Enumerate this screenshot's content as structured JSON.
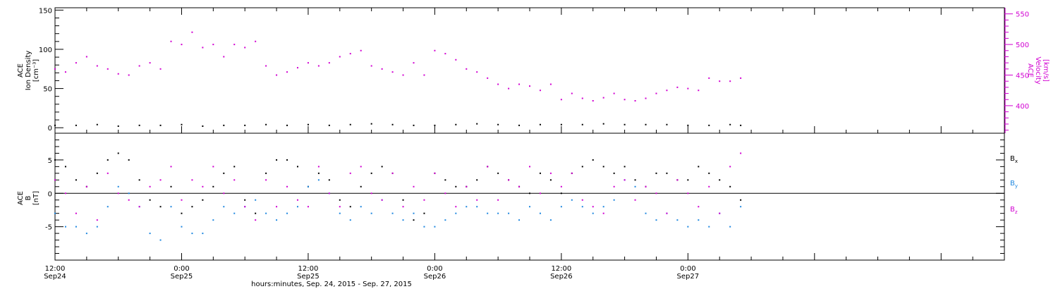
{
  "chart_data": [
    {
      "type": "scatter",
      "panel": "top",
      "ylabel_left": [
        "ACE",
        "Ion Density",
        "[cm⁻³]"
      ],
      "ylabel_right": [
        "ACE",
        "Velocity",
        "[km/s]"
      ],
      "y_left_range": [
        -7,
        153
      ],
      "y_left_ticks": [
        "0",
        "50",
        "100",
        "150"
      ],
      "y_right_range": [
        355,
        560
      ],
      "y_right_ticks": [
        "400",
        "450",
        "500",
        "550"
      ],
      "series": [
        {
          "color": "#000000",
          "axis": "left",
          "x": [
            0,
            2,
            4,
            6,
            8,
            10,
            12,
            14,
            16,
            18,
            20,
            22,
            24,
            26,
            28,
            30,
            32,
            34,
            36,
            38,
            40,
            42,
            44,
            46,
            48,
            50,
            52,
            54,
            56,
            58,
            60,
            62,
            64,
            65
          ],
          "y": [
            3,
            3,
            4,
            2,
            3,
            3,
            4,
            2,
            3,
            3,
            4,
            3,
            4,
            3,
            4,
            5,
            4,
            3,
            3,
            4,
            5,
            4,
            3,
            4,
            4,
            4,
            5,
            4,
            4,
            4,
            3,
            3,
            4,
            3
          ]
        },
        {
          "color": "#d200d2",
          "axis": "right",
          "x": [
            0,
            1,
            2,
            3,
            4,
            5,
            6,
            7,
            8,
            9,
            10,
            11,
            12,
            13,
            14,
            15,
            16,
            17,
            18,
            19,
            20,
            21,
            22,
            23,
            24,
            25,
            26,
            27,
            28,
            29,
            30,
            31,
            32,
            33,
            34,
            35,
            36,
            37,
            38,
            39,
            40,
            41,
            42,
            43,
            44,
            45,
            46,
            47,
            48,
            49,
            50,
            51,
            52,
            53,
            54,
            55,
            56,
            57,
            58,
            59,
            60,
            61,
            62,
            63,
            64,
            65
          ],
          "y": [
            460,
            455,
            470,
            480,
            465,
            460,
            452,
            450,
            465,
            470,
            460,
            505,
            500,
            520,
            495,
            500,
            480,
            500,
            495,
            505,
            465,
            450,
            455,
            462,
            470,
            465,
            470,
            480,
            485,
            490,
            465,
            460,
            455,
            450,
            470,
            450,
            490,
            485,
            475,
            460,
            455,
            445,
            435,
            428,
            435,
            432,
            425,
            435,
            410,
            420,
            412,
            408,
            413,
            420,
            410,
            408,
            412,
            420,
            425,
            430,
            428,
            425,
            445,
            440,
            440,
            445
          ]
        }
      ]
    },
    {
      "type": "scatter",
      "panel": "bottom",
      "ylabel_left": [
        "ACE",
        "B",
        "[nT]"
      ],
      "y_range": [
        -10,
        9
      ],
      "y_ticks": [
        "-5",
        "0",
        "5"
      ],
      "zero_line": true,
      "legend_position": "right",
      "series": [
        {
          "name": "Bx",
          "color": "#000000",
          "x": [
            0,
            1,
            2,
            3,
            4,
            5,
            6,
            7,
            8,
            9,
            10,
            11,
            12,
            13,
            14,
            15,
            16,
            17,
            18,
            19,
            20,
            21,
            22,
            23,
            24,
            25,
            26,
            27,
            28,
            29,
            30,
            31,
            32,
            33,
            34,
            35,
            36,
            37,
            38,
            39,
            40,
            41,
            42,
            43,
            44,
            45,
            46,
            47,
            48,
            49,
            50,
            51,
            52,
            53,
            54,
            55,
            56,
            57,
            58,
            59,
            60,
            61,
            62,
            63,
            64,
            65
          ],
          "y": [
            5,
            4,
            2,
            1,
            3,
            5,
            6,
            5,
            2,
            -1,
            -2,
            1,
            -3,
            -2,
            -1,
            1,
            3,
            4,
            -1,
            -3,
            3,
            5,
            5,
            4,
            1,
            3,
            2,
            -1,
            -2,
            1,
            3,
            4,
            3,
            -1,
            -4,
            -3,
            3,
            2,
            1,
            1,
            2,
            4,
            3,
            2,
            1,
            0,
            3,
            2,
            0,
            3,
            4,
            5,
            4,
            3,
            4,
            2,
            1,
            3,
            3,
            2,
            2,
            4,
            3,
            2,
            1,
            -1
          ]
        },
        {
          "name": "By",
          "color": "#1f88e0",
          "x": [
            0,
            1,
            2,
            3,
            4,
            5,
            6,
            7,
            8,
            9,
            10,
            11,
            12,
            13,
            14,
            15,
            16,
            17,
            18,
            19,
            20,
            21,
            22,
            23,
            24,
            25,
            26,
            27,
            28,
            29,
            30,
            31,
            32,
            33,
            34,
            35,
            36,
            37,
            38,
            39,
            40,
            41,
            42,
            43,
            44,
            45,
            46,
            47,
            48,
            49,
            50,
            51,
            52,
            53,
            54,
            55,
            56,
            57,
            58,
            59,
            60,
            61,
            62,
            63,
            64,
            65
          ],
          "y": [
            -3,
            -5,
            -5,
            -6,
            -5,
            -2,
            1,
            0,
            -2,
            -6,
            -7,
            -2,
            -5,
            -6,
            -6,
            -4,
            -2,
            -3,
            -2,
            -1,
            -3,
            -4,
            -3,
            -2,
            1,
            2,
            0,
            -3,
            -4,
            -2,
            -3,
            -1,
            -3,
            -4,
            -3,
            -5,
            -5,
            -4,
            -3,
            -2,
            -2,
            -3,
            -3,
            -3,
            -4,
            -2,
            -3,
            -4,
            -2,
            -1,
            -2,
            -3,
            -2,
            -1,
            2,
            1,
            -3,
            -4,
            -3,
            -4,
            -5,
            -4,
            -5,
            -3,
            -5,
            -2
          ]
        },
        {
          "name": "Bz",
          "color": "#d200d2",
          "x": [
            0,
            1,
            2,
            3,
            4,
            5,
            6,
            7,
            8,
            9,
            10,
            11,
            12,
            13,
            14,
            15,
            16,
            17,
            18,
            19,
            20,
            21,
            22,
            23,
            24,
            25,
            26,
            27,
            28,
            29,
            30,
            31,
            32,
            33,
            34,
            35,
            36,
            37,
            38,
            39,
            40,
            41,
            42,
            43,
            44,
            45,
            46,
            47,
            48,
            49,
            50,
            51,
            52,
            53,
            54,
            55,
            56,
            57,
            58,
            59,
            60,
            61,
            62,
            63,
            64,
            65
          ],
          "y": [
            2,
            0,
            -3,
            1,
            -4,
            3,
            0,
            -1,
            -2,
            1,
            2,
            4,
            -1,
            2,
            1,
            4,
            0,
            2,
            -2,
            -4,
            2,
            -2,
            1,
            -1,
            -2,
            4,
            0,
            -2,
            3,
            4,
            0,
            -1,
            3,
            -2,
            1,
            -1,
            3,
            0,
            -2,
            1,
            -1,
            4,
            -1,
            2,
            1,
            4,
            0,
            3,
            1,
            3,
            -1,
            -2,
            -3,
            1,
            2,
            -1,
            1,
            0,
            -3,
            2,
            0,
            -2,
            1,
            -3,
            4,
            6
          ]
        }
      ]
    }
  ],
  "x_axis": {
    "range_hours": [
      0,
      90
    ],
    "major_ticks_hours": [
      0,
      12,
      24,
      36,
      48,
      60,
      72
    ],
    "tick_labels_time": [
      "12:00",
      "0:00",
      "12:00",
      "0:00",
      "12:00",
      "0:00",
      ""
    ],
    "tick_labels_date": [
      "Sep24",
      "Sep25",
      "Sep25",
      "Sep26",
      "Sep26",
      "Sep27",
      ""
    ],
    "xlabel": "hours:minutes, Sep. 24, 2015 - Sep. 27, 2015"
  },
  "legend": {
    "bx": "B",
    "bx_sub": "x",
    "by": "B",
    "by_sub": "y",
    "bz": "B",
    "bz_sub": "z"
  },
  "colors": {
    "black": "#000000",
    "magenta": "#d200d2",
    "blue": "#1f88e0"
  }
}
